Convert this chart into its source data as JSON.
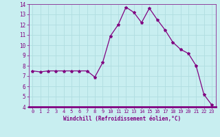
{
  "x": [
    0,
    1,
    2,
    3,
    4,
    5,
    6,
    7,
    8,
    9,
    10,
    11,
    12,
    13,
    14,
    15,
    16,
    17,
    18,
    19,
    20,
    21,
    22,
    23
  ],
  "y": [
    7.5,
    7.4,
    7.5,
    7.5,
    7.5,
    7.5,
    7.5,
    7.5,
    6.9,
    8.3,
    10.9,
    12.0,
    13.7,
    13.2,
    12.2,
    13.6,
    12.5,
    11.5,
    10.3,
    9.6,
    9.2,
    8.0,
    5.2,
    4.2
  ],
  "line_color": "#800080",
  "marker": "*",
  "marker_size": 3,
  "bg_color": "#c8eef0",
  "grid_color": "#b0dde0",
  "xlabel": "Windchill (Refroidissement éolien,°C)",
  "xlabel_color": "#800080",
  "tick_color": "#800080",
  "ylim": [
    4,
    14
  ],
  "xlim": [
    -0.5,
    23.5
  ],
  "yticks": [
    4,
    5,
    6,
    7,
    8,
    9,
    10,
    11,
    12,
    13,
    14
  ],
  "xticks": [
    0,
    1,
    2,
    3,
    4,
    5,
    6,
    7,
    8,
    9,
    10,
    11,
    12,
    13,
    14,
    15,
    16,
    17,
    18,
    19,
    20,
    21,
    22,
    23
  ],
  "spine_color": "#800080",
  "spine_bottom_color": "#800080",
  "fig_bg": "#c8eef0",
  "tick_fontsize": 5.0,
  "xlabel_fontsize": 5.5,
  "linewidth": 0.9
}
